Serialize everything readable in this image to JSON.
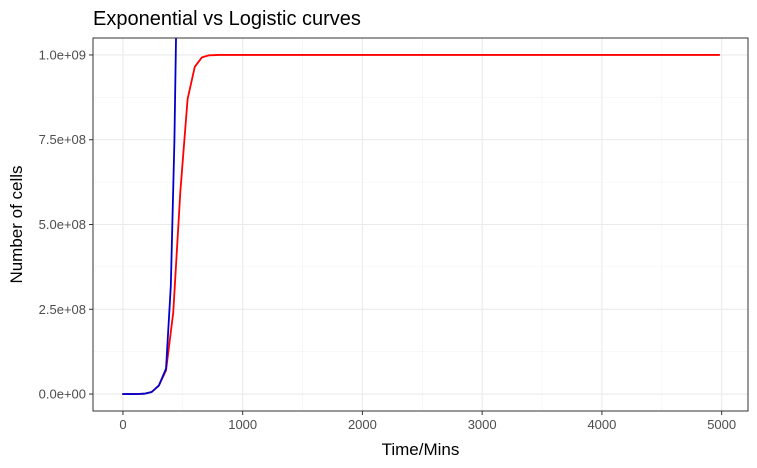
{
  "chart_data": {
    "type": "line",
    "title": "Exponential vs Logistic curves",
    "xlabel": "Time/Mins",
    "ylabel": "Number of cells",
    "xlim": [
      -250,
      5220
    ],
    "ylim": [
      -50000000,
      1050000000
    ],
    "x_ticks": [
      0,
      1000,
      2000,
      3000,
      4000,
      5000
    ],
    "x_tick_labels": [
      "0",
      "1000",
      "2000",
      "3000",
      "4000",
      "5000"
    ],
    "y_ticks": [
      0,
      250000000,
      500000000,
      750000000,
      1000000000
    ],
    "y_tick_labels": [
      "0.0e+00",
      "2.5e+08",
      "5.0e+08",
      "7.5e+08",
      "1.0e+09"
    ],
    "grid": true,
    "legend": "none",
    "series": [
      {
        "color": "#ff0000",
        "x": [
          0,
          60,
          120,
          180,
          240,
          300,
          360,
          420,
          480,
          540,
          600,
          660,
          720,
          800,
          900,
          1000,
          1500,
          2000,
          2500,
          3000,
          3500,
          4000,
          4500,
          4980
        ],
        "values": [
          1000,
          5000,
          50000,
          1000000,
          6000000,
          25000000,
          70000000,
          240000000,
          600000000,
          870000000,
          965000000,
          993000000,
          999000000,
          1000000000,
          1000000000,
          1000000000,
          1000000000,
          1000000000,
          1000000000,
          1000000000,
          1000000000,
          1000000000,
          1000000000,
          1000000000
        ]
      },
      {
        "color": "#0000cc",
        "x": [
          0,
          60,
          120,
          180,
          240,
          300,
          360,
          400,
          430,
          450
        ],
        "values": [
          1000,
          5000,
          50000,
          1000000,
          6000000,
          25000000,
          75000000,
          320000000,
          750000000,
          1200000000
        ]
      }
    ]
  }
}
